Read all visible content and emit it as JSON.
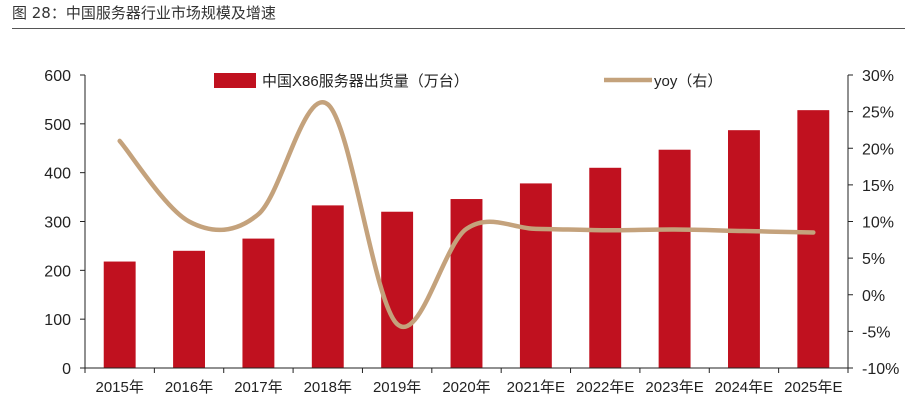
{
  "figure": {
    "title": "图 28：中国服务器行业市场规模及增速"
  },
  "colors": {
    "bar": "#C0111F",
    "line": "#C4A27C",
    "axis": "#222222"
  },
  "chart_data": {
    "type": "bar",
    "categories": [
      "2015年",
      "2016年",
      "2017年",
      "2018年",
      "2019年",
      "2020年",
      "2021年E",
      "2022年E",
      "2023年E",
      "2024年E",
      "2025年E"
    ],
    "series": [
      {
        "name": "中国X86服务器出货量（万台）",
        "type": "bar",
        "axis": "left",
        "values": [
          218,
          240,
          265,
          333,
          320,
          346,
          378,
          410,
          447,
          487,
          528
        ]
      },
      {
        "name": "yoy（右）",
        "type": "line",
        "axis": "right",
        "values": [
          21,
          10,
          11,
          26,
          -4,
          9,
          9,
          8.8,
          8.9,
          8.7,
          8.5
        ]
      }
    ],
    "ylim": [
      0,
      600
    ],
    "yticks": [
      "0",
      "100",
      "200",
      "300",
      "400",
      "500",
      "600"
    ],
    "y2lim": [
      -10,
      30
    ],
    "y2ticks": [
      "-10%",
      "-5%",
      "0%",
      "5%",
      "10%",
      "15%",
      "20%",
      "25%",
      "30%"
    ],
    "legend": "top"
  }
}
